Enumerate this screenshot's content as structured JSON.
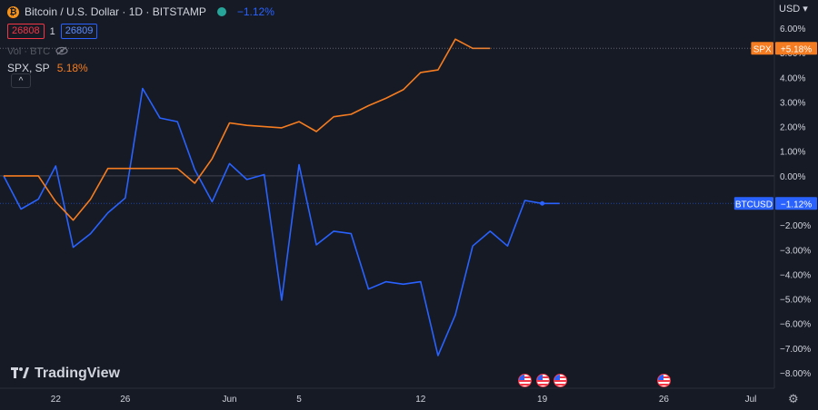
{
  "header": {
    "symbol_title": "Bitcoin / U.S. Dollar · 1D · BITSTAMP",
    "change": "−1.12%",
    "bid": "26808",
    "spread": "1",
    "ask": "26809",
    "volume_label": "Vol · BTC",
    "compare_symbol": "SPX, SP",
    "compare_change": "5.18%",
    "collapse_glyph": "^",
    "currency": "USD ▾"
  },
  "watermark": {
    "text": "TradingView"
  },
  "colors": {
    "btc": "#2962ff",
    "spx": "#f57c20",
    "background": "#161a25",
    "grid": "#2a2e39",
    "text": "#d1d4dc"
  },
  "chart_data": {
    "type": "line",
    "y_unit": "%",
    "ylim": [
      -8.6,
      6.7
    ],
    "y_ticks": [
      "6.00%",
      "5.00%",
      "4.00%",
      "3.00%",
      "2.00%",
      "1.00%",
      "0.00%",
      "−1.00%",
      "−2.00%",
      "−3.00%",
      "−4.00%",
      "−5.00%",
      "−6.00%",
      "−7.00%",
      "−8.00%"
    ],
    "y_tick_values": [
      6,
      5,
      4,
      3,
      2,
      1,
      0,
      -1,
      -2,
      -3,
      -4,
      -5,
      -6,
      -7,
      -8
    ],
    "x_labels": [
      {
        "text": "22",
        "day": 22
      },
      {
        "text": "26",
        "day": 26
      },
      {
        "text": "Jun",
        "day": 32
      },
      {
        "text": "5",
        "day": 36
      },
      {
        "text": "12",
        "day": 43
      },
      {
        "text": "19",
        "day": 50
      },
      {
        "text": "26",
        "day": 57
      },
      {
        "text": "Jul",
        "day": 62
      }
    ],
    "series": [
      {
        "name": "BTCUSD",
        "label_value": "−1.12%",
        "last": -1.12,
        "x": [
          19,
          20,
          21,
          22,
          23,
          24,
          25,
          26,
          27,
          28,
          29,
          30,
          31,
          32,
          33,
          34,
          35,
          36,
          37,
          38,
          39,
          40,
          41,
          42,
          43,
          44,
          45,
          46,
          47,
          48,
          49,
          50,
          51
        ],
        "values": [
          0.0,
          -1.35,
          -0.95,
          0.4,
          -2.9,
          -2.35,
          -1.5,
          -0.9,
          3.55,
          2.35,
          2.2,
          0.25,
          -1.05,
          0.5,
          -0.15,
          0.05,
          -5.05,
          0.45,
          -2.8,
          -2.25,
          -2.35,
          -4.6,
          -4.3,
          -4.4,
          -4.3,
          -7.3,
          -5.65,
          -2.85,
          -2.25,
          -2.85,
          -1.0,
          -1.12,
          -1.12
        ]
      },
      {
        "name": "SPX",
        "label_value": "+5.18%",
        "last": 5.18,
        "x": [
          19,
          20,
          21,
          22,
          23,
          24,
          25,
          26,
          27,
          28,
          29,
          30,
          31,
          32,
          33,
          34,
          35,
          36,
          37,
          38,
          39,
          40,
          41,
          42,
          43,
          44,
          45,
          46,
          47
        ],
        "values": [
          0.0,
          0.0,
          0.0,
          -1.05,
          -1.8,
          -0.95,
          0.3,
          0.3,
          0.3,
          0.3,
          0.3,
          -0.3,
          0.7,
          2.15,
          2.05,
          2.0,
          1.95,
          2.2,
          1.8,
          2.4,
          2.5,
          2.85,
          3.15,
          3.5,
          4.2,
          4.3,
          5.55,
          5.18,
          5.18
        ]
      }
    ],
    "events_days": [
      49,
      50,
      51,
      57
    ]
  }
}
